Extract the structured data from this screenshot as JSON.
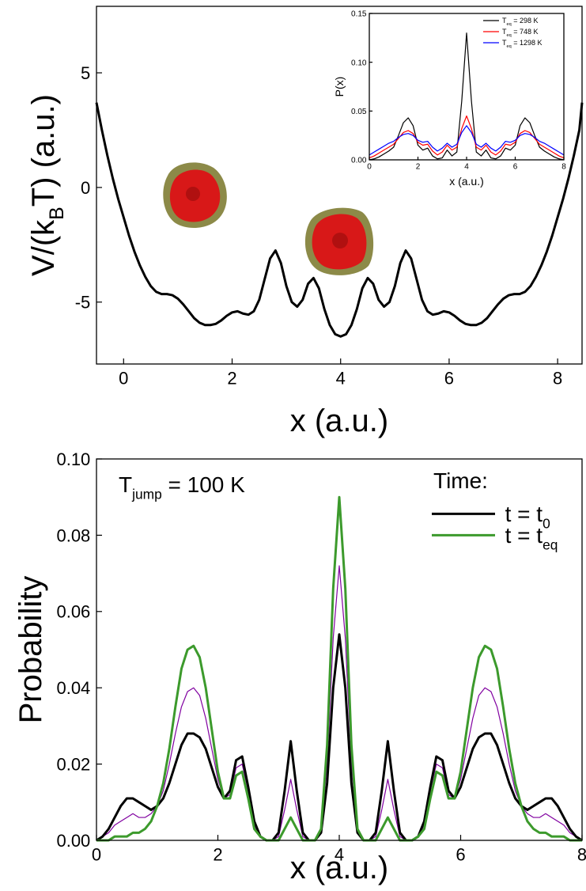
{
  "chart_data": [
    {
      "type": "line",
      "xlabel": "x (a.u.)",
      "ylabel": [
        "V/(k",
        "B",
        "T) (a.u.)"
      ],
      "xlim": [
        -0.5,
        8.45
      ],
      "ylim": [
        -7.7,
        7.9
      ],
      "xticks": [
        0,
        2,
        4,
        6,
        8
      ],
      "yticks": [
        -5,
        0,
        5
      ],
      "x": [
        -0.5,
        -0.4,
        -0.3,
        -0.2,
        -0.1,
        0,
        0.1,
        0.2,
        0.3,
        0.4,
        0.5,
        0.6,
        0.7,
        0.8,
        0.9,
        1.0,
        1.1,
        1.2,
        1.3,
        1.4,
        1.5,
        1.6,
        1.7,
        1.8,
        1.9,
        2.0,
        2.1,
        2.2,
        2.3,
        2.4,
        2.5,
        2.6,
        2.7,
        2.8,
        2.9,
        3.0,
        3.1,
        3.2,
        3.3,
        3.4,
        3.5,
        3.6,
        3.7,
        3.8,
        3.9,
        4.0,
        4.1,
        4.2,
        4.3,
        4.4,
        4.5,
        4.6,
        4.7,
        4.8,
        4.9,
        5.0,
        5.1,
        5.2,
        5.3,
        5.4,
        5.5,
        5.6,
        5.7,
        5.8,
        5.9,
        6.0,
        6.1,
        6.2,
        6.3,
        6.4,
        6.5,
        6.6,
        6.7,
        6.8,
        6.9,
        7.0,
        7.1,
        7.2,
        7.3,
        7.4,
        7.5,
        7.6,
        7.7,
        7.8,
        7.9,
        8.0,
        8.1,
        8.2,
        8.3,
        8.4,
        8.45
      ],
      "series": [
        {
          "color": "#000000",
          "values": [
            3.7,
            2.5,
            1.4,
            0.4,
            -0.5,
            -1.3,
            -2.1,
            -2.8,
            -3.4,
            -3.9,
            -4.3,
            -4.55,
            -4.65,
            -4.65,
            -4.7,
            -4.85,
            -5.1,
            -5.4,
            -5.7,
            -5.9,
            -6.0,
            -6.0,
            -5.95,
            -5.8,
            -5.6,
            -5.45,
            -5.4,
            -5.5,
            -5.55,
            -5.4,
            -4.9,
            -4.0,
            -3.1,
            -2.75,
            -3.3,
            -4.3,
            -5.0,
            -5.2,
            -4.9,
            -4.2,
            -3.95,
            -4.4,
            -5.3,
            -6.0,
            -6.4,
            -6.5,
            -6.4,
            -6.0,
            -5.3,
            -4.4,
            -3.95,
            -4.2,
            -4.9,
            -5.2,
            -5.0,
            -4.3,
            -3.3,
            -2.75,
            -3.1,
            -4.0,
            -4.9,
            -5.4,
            -5.55,
            -5.5,
            -5.4,
            -5.45,
            -5.6,
            -5.8,
            -5.95,
            -6.0,
            -6.0,
            -5.9,
            -5.7,
            -5.4,
            -5.1,
            -4.85,
            -4.7,
            -4.65,
            -4.65,
            -4.55,
            -4.3,
            -3.9,
            -3.4,
            -2.8,
            -2.1,
            -1.3,
            -0.5,
            0.4,
            1.4,
            2.5,
            3.7
          ]
        }
      ]
    },
    {
      "type": "line",
      "xlabel": "x (a.u.)",
      "ylabel": "P(x)",
      "xlim": [
        0,
        8
      ],
      "ylim": [
        0,
        0.15
      ],
      "xticks": [
        0,
        2,
        4,
        6,
        8
      ],
      "yticks": [
        {
          "value": 0,
          "label": "0.00"
        },
        {
          "value": 0.05,
          "label": "0.05"
        },
        {
          "value": 0.1,
          "label": "0.10"
        },
        {
          "value": 0.15,
          "label": "0.15"
        }
      ],
      "legend": "upper right",
      "x": [
        0,
        0.2,
        0.4,
        0.6,
        0.8,
        1.0,
        1.2,
        1.4,
        1.6,
        1.8,
        2.0,
        2.2,
        2.4,
        2.6,
        2.8,
        3.0,
        3.2,
        3.4,
        3.6,
        3.8,
        4.0,
        4.2,
        4.4,
        4.6,
        4.8,
        5.0,
        5.2,
        5.4,
        5.6,
        5.8,
        6.0,
        6.2,
        6.4,
        6.6,
        6.8,
        7.0,
        7.2,
        7.4,
        7.6,
        7.8,
        8.0
      ],
      "series": [
        {
          "name": [
            "T",
            "eq",
            " = 298 K"
          ],
          "color": "#000000",
          "values": [
            0,
            0.001,
            0.003,
            0.006,
            0.009,
            0.013,
            0.025,
            0.038,
            0.043,
            0.035,
            0.015,
            0.01,
            0.012,
            0.004,
            0.001,
            0.002,
            0.01,
            0.004,
            0.008,
            0.06,
            0.13,
            0.06,
            0.008,
            0.004,
            0.01,
            0.002,
            0.001,
            0.004,
            0.012,
            0.01,
            0.015,
            0.035,
            0.043,
            0.038,
            0.025,
            0.013,
            0.009,
            0.006,
            0.003,
            0.001,
            0
          ]
        },
        {
          "name": [
            "T",
            "eq",
            " = 748 K"
          ],
          "color": "#ff0000",
          "values": [
            0.002,
            0.004,
            0.007,
            0.01,
            0.013,
            0.016,
            0.022,
            0.028,
            0.03,
            0.027,
            0.018,
            0.015,
            0.016,
            0.009,
            0.005,
            0.008,
            0.015,
            0.01,
            0.013,
            0.032,
            0.045,
            0.032,
            0.013,
            0.01,
            0.015,
            0.008,
            0.005,
            0.009,
            0.016,
            0.015,
            0.018,
            0.027,
            0.03,
            0.028,
            0.022,
            0.016,
            0.013,
            0.01,
            0.007,
            0.004,
            0.002
          ]
        },
        {
          "name": [
            "T",
            "eq",
            " = 1298 K"
          ],
          "color": "#0000ff",
          "values": [
            0.005,
            0.008,
            0.011,
            0.014,
            0.017,
            0.019,
            0.023,
            0.026,
            0.027,
            0.025,
            0.02,
            0.018,
            0.019,
            0.013,
            0.009,
            0.012,
            0.017,
            0.013,
            0.016,
            0.028,
            0.035,
            0.028,
            0.016,
            0.013,
            0.017,
            0.012,
            0.009,
            0.013,
            0.019,
            0.018,
            0.02,
            0.025,
            0.027,
            0.026,
            0.023,
            0.019,
            0.017,
            0.014,
            0.011,
            0.008,
            0.005
          ]
        }
      ]
    },
    {
      "type": "line",
      "xlabel": "x (a.u.)",
      "ylabel": "Probability",
      "annotation": [
        "T",
        "jump",
        " = 100 K"
      ],
      "legend_title": "Time:",
      "legend": "upper right",
      "xlim": [
        0,
        8
      ],
      "ylim": [
        0,
        0.1
      ],
      "xticks": [
        0,
        2,
        4,
        6,
        8
      ],
      "yticks": [
        {
          "value": 0,
          "label": "0.00"
        },
        {
          "value": 0.02,
          "label": "0.02"
        },
        {
          "value": 0.04,
          "label": "0.04"
        },
        {
          "value": 0.06,
          "label": "0.06"
        },
        {
          "value": 0.08,
          "label": "0.08"
        },
        {
          "value": 0.1,
          "label": "0.10"
        }
      ],
      "x": [
        0,
        0.1,
        0.2,
        0.3,
        0.4,
        0.5,
        0.6,
        0.7,
        0.8,
        0.9,
        1.0,
        1.1,
        1.2,
        1.3,
        1.4,
        1.5,
        1.6,
        1.7,
        1.8,
        1.9,
        2.0,
        2.1,
        2.2,
        2.3,
        2.4,
        2.5,
        2.6,
        2.7,
        2.8,
        2.9,
        3.0,
        3.1,
        3.2,
        3.3,
        3.4,
        3.5,
        3.6,
        3.7,
        3.8,
        3.9,
        4.0,
        4.1,
        4.2,
        4.3,
        4.4,
        4.5,
        4.6,
        4.7,
        4.8,
        4.9,
        5.0,
        5.1,
        5.2,
        5.3,
        5.4,
        5.5,
        5.6,
        5.7,
        5.8,
        5.9,
        6.0,
        6.1,
        6.2,
        6.3,
        6.4,
        6.5,
        6.6,
        6.7,
        6.8,
        6.9,
        7.0,
        7.1,
        7.2,
        7.3,
        7.4,
        7.5,
        7.6,
        7.7,
        7.8,
        7.9,
        8.0
      ],
      "series": [
        {
          "color": "#8000a0",
          "values": [
            0,
            0.001,
            0.002,
            0.004,
            0.005,
            0.006,
            0.007,
            0.006,
            0.006,
            0.007,
            0.009,
            0.013,
            0.02,
            0.028,
            0.035,
            0.039,
            0.04,
            0.038,
            0.032,
            0.024,
            0.016,
            0.011,
            0.012,
            0.019,
            0.02,
            0.013,
            0.004,
            0.001,
            0,
            0,
            0.001,
            0.008,
            0.016,
            0.008,
            0.001,
            0,
            0,
            0.003,
            0.02,
            0.053,
            0.072,
            0.053,
            0.02,
            0.003,
            0,
            0,
            0.001,
            0.008,
            0.016,
            0.008,
            0.001,
            0,
            0,
            0.001,
            0.004,
            0.013,
            0.02,
            0.019,
            0.012,
            0.011,
            0.016,
            0.024,
            0.032,
            0.038,
            0.04,
            0.039,
            0.035,
            0.028,
            0.02,
            0.013,
            0.009,
            0.007,
            0.006,
            0.006,
            0.007,
            0.006,
            0.005,
            0.004,
            0.002,
            0.001,
            0
          ]
        },
        {
          "name": [
            "t = t",
            "0"
          ],
          "color": "#000000",
          "values": [
            0,
            0.001,
            0.003,
            0.006,
            0.009,
            0.011,
            0.011,
            0.01,
            0.009,
            0.008,
            0.009,
            0.011,
            0.015,
            0.02,
            0.025,
            0.028,
            0.028,
            0.027,
            0.024,
            0.019,
            0.014,
            0.011,
            0.013,
            0.021,
            0.022,
            0.014,
            0.005,
            0.001,
            0,
            0,
            0.002,
            0.013,
            0.026,
            0.013,
            0.002,
            0,
            0,
            0.002,
            0.015,
            0.04,
            0.054,
            0.04,
            0.015,
            0.002,
            0,
            0,
            0.002,
            0.013,
            0.026,
            0.013,
            0.002,
            0,
            0,
            0.001,
            0.005,
            0.014,
            0.022,
            0.021,
            0.013,
            0.011,
            0.014,
            0.019,
            0.024,
            0.027,
            0.028,
            0.028,
            0.025,
            0.02,
            0.015,
            0.011,
            0.009,
            0.008,
            0.009,
            0.01,
            0.011,
            0.011,
            0.009,
            0.006,
            0.003,
            0.001,
            0
          ]
        },
        {
          "name": [
            "t = t",
            "eq"
          ],
          "color": "#3c9a2c",
          "values": [
            0,
            0,
            0,
            0.001,
            0.001,
            0.001,
            0.002,
            0.002,
            0.003,
            0.005,
            0.009,
            0.015,
            0.024,
            0.035,
            0.045,
            0.05,
            0.051,
            0.048,
            0.04,
            0.029,
            0.018,
            0.011,
            0.011,
            0.017,
            0.018,
            0.011,
            0.003,
            0.001,
            0,
            0,
            0,
            0.003,
            0.006,
            0.003,
            0,
            0,
            0,
            0.003,
            0.025,
            0.066,
            0.09,
            0.066,
            0.025,
            0.003,
            0,
            0,
            0,
            0.003,
            0.006,
            0.003,
            0,
            0,
            0,
            0.001,
            0.003,
            0.011,
            0.018,
            0.017,
            0.011,
            0.011,
            0.018,
            0.029,
            0.04,
            0.048,
            0.051,
            0.05,
            0.045,
            0.035,
            0.024,
            0.015,
            0.009,
            0.005,
            0.003,
            0.002,
            0.002,
            0.001,
            0.001,
            0.001,
            0,
            0,
            0
          ]
        }
      ]
    }
  ]
}
